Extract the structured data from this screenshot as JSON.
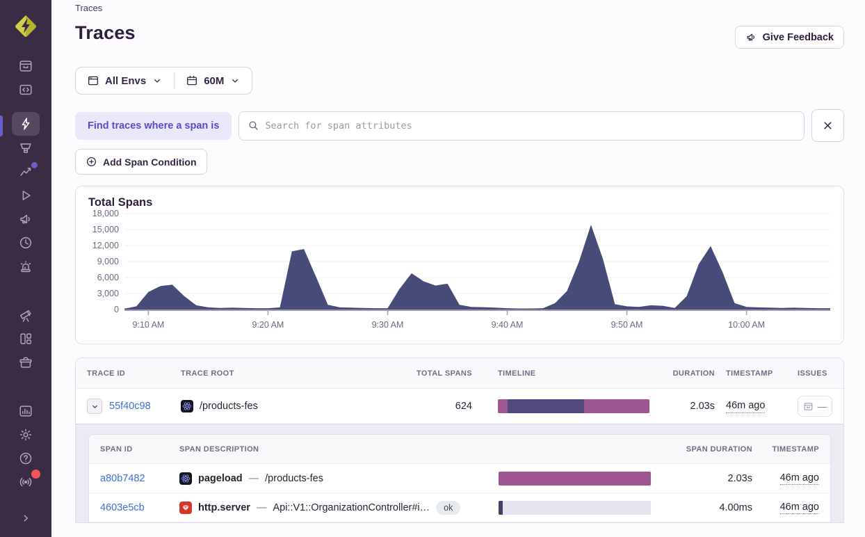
{
  "app": {
    "breadcrumb": "Traces",
    "page_title": "Traces",
    "give_feedback_label": "Give Feedback"
  },
  "sidebar": {
    "logo": "sentry-logo",
    "icons": [
      "issues",
      "projects",
      "explore-traces (active)",
      "insights",
      "performance (notification dot)",
      "replays",
      "feedback",
      "releases-history",
      "alerts",
      "discover",
      "dashboards",
      "archive",
      "stats",
      "settings",
      "help",
      "whats-new (notification dot)",
      "collapse-expand"
    ],
    "colors": {
      "background": "#3a2c44",
      "icon": "#b2a6bd",
      "active_bg": "#554860",
      "active_notch": "#6a5fc8",
      "dot_purple": "#6a5fc8",
      "dot_red": "#f55459",
      "logo_yellow": "#d3cd4b"
    }
  },
  "filters": {
    "env_label": "All Envs",
    "period_label": "60M"
  },
  "search": {
    "chip_label": "Find traces where a span is",
    "placeholder": "Search for span attributes",
    "add_condition_label": "Add Span Condition"
  },
  "chart_data": {
    "type": "area",
    "title": "Total Spans",
    "x": [
      "9:08",
      "9:09",
      "9:10",
      "9:11",
      "9:12",
      "9:13",
      "9:14",
      "9:15",
      "9:16",
      "9:17",
      "9:18",
      "9:19",
      "9:20",
      "9:21",
      "9:22",
      "9:23",
      "9:24",
      "9:25",
      "9:26",
      "9:27",
      "9:28",
      "9:29",
      "9:30",
      "9:31",
      "9:32",
      "9:33",
      "9:34",
      "9:35",
      "9:36",
      "9:37",
      "9:38",
      "9:39",
      "9:40",
      "9:41",
      "9:42",
      "9:43",
      "9:44",
      "9:45",
      "9:46",
      "9:47",
      "9:48",
      "9:49",
      "9:50",
      "9:51",
      "9:52",
      "9:53",
      "9:54",
      "9:55",
      "9:56",
      "9:57",
      "9:58",
      "9:59",
      "10:00",
      "10:01",
      "10:02",
      "10:03",
      "10:04",
      "10:05",
      "10:06",
      "10:07"
    ],
    "values": [
      150,
      600,
      3300,
      4400,
      4650,
      2500,
      800,
      400,
      300,
      350,
      300,
      250,
      250,
      400,
      10900,
      11350,
      6200,
      900,
      400,
      350,
      300,
      250,
      250,
      3900,
      6800,
      5300,
      4500,
      4850,
      900,
      500,
      450,
      350,
      250,
      200,
      200,
      250,
      1200,
      3500,
      9000,
      15900,
      9500,
      1000,
      600,
      500,
      800,
      700,
      300,
      2500,
      8500,
      11900,
      7000,
      1200,
      500,
      400,
      350,
      300,
      350,
      300,
      250,
      250
    ],
    "ylim": [
      0,
      18000
    ],
    "y_ticks": [
      0,
      3000,
      6000,
      9000,
      12000,
      15000,
      18000
    ],
    "y_tick_labels": [
      "0",
      "3,000",
      "6,000",
      "9,000",
      "12,000",
      "15,000",
      "18,000"
    ],
    "x_tick_indices": [
      2,
      12,
      22,
      32,
      42,
      52
    ],
    "x_tick_labels": [
      "9:10 AM",
      "9:20 AM",
      "9:30 AM",
      "9:40 AM",
      "9:50 AM",
      "10:00 AM"
    ],
    "fill_color": "#474b78",
    "grid": true,
    "legend": "none"
  },
  "trace_table": {
    "headers": {
      "trace_id": "Trace ID",
      "trace_root": "Trace Root",
      "total_spans": "Total Spans",
      "timeline": "Timeline",
      "duration": "Duration",
      "timestamp": "Timestamp",
      "issues": "Issues"
    },
    "row": {
      "trace_id": "55f40c98",
      "platform": "react-icon",
      "trace_root": "/products-fes",
      "total_spans": "624",
      "duration": "2.03s",
      "timestamp": "46m ago",
      "issues": "—",
      "timeline": [
        {
          "w": 6.5,
          "color": "#a1568f"
        },
        {
          "w": 50.5,
          "color": "#524a7d"
        },
        {
          "w": 43.0,
          "color": "#9d5590"
        }
      ]
    },
    "span_table": {
      "headers": {
        "span_id": "Span ID",
        "span_description": "Span Description",
        "span_duration": "Span Duration",
        "timestamp": "Timestamp"
      },
      "rows": [
        {
          "span_id": "a80b7482",
          "platform": "react-icon",
          "op": "pageload",
          "sep": "—",
          "description": "/products-fes",
          "status": "",
          "duration": "2.03s",
          "timestamp": "46m ago",
          "timeline": [
            {
              "w": 100,
              "color": "#9d5590"
            }
          ]
        },
        {
          "span_id": "4603e5cb",
          "platform": "ruby-icon",
          "op": "http.server",
          "sep": "—",
          "description": "Api::V1::OrganizationController#i…",
          "status": "ok",
          "duration": "4.00ms",
          "timestamp": "46m ago",
          "timeline": [
            {
              "w": 2.6,
              "color": "#474066"
            }
          ]
        }
      ]
    }
  }
}
